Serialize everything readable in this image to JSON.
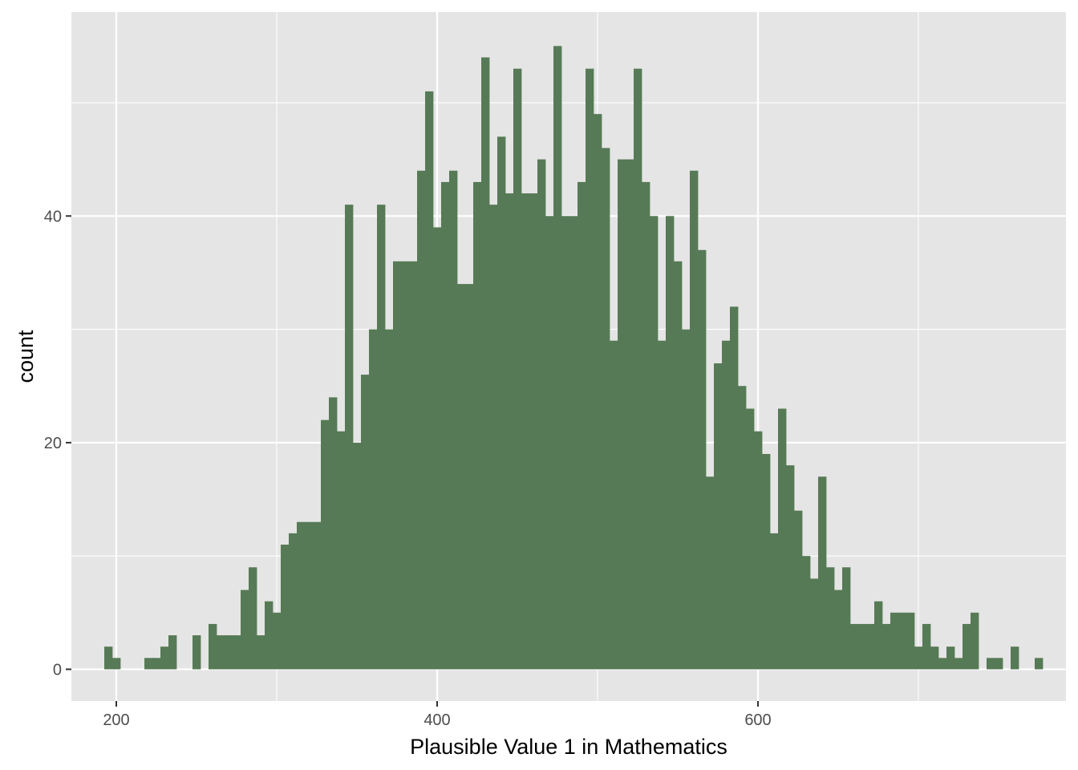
{
  "chart_data": {
    "type": "bar",
    "title": "",
    "xlabel": "Plausible Value 1 in Mathematics",
    "ylabel": "count",
    "bin_width": 5,
    "first_bin_start": 192.5,
    "counts": [
      2,
      1,
      0,
      0,
      0,
      1,
      1,
      2,
      3,
      0,
      0,
      3,
      0,
      4,
      3,
      3,
      3,
      7,
      9,
      3,
      6,
      5,
      11,
      12,
      13,
      13,
      13,
      22,
      24,
      21,
      41,
      20,
      26,
      30,
      41,
      30,
      36,
      36,
      36,
      44,
      51,
      39,
      43,
      44,
      34,
      34,
      43,
      54,
      41,
      47,
      42,
      53,
      42,
      42,
      45,
      40,
      55,
      40,
      40,
      43,
      53,
      49,
      46,
      29,
      45,
      45,
      53,
      43,
      40,
      29,
      40,
      36,
      30,
      44,
      37,
      17,
      27,
      29,
      32,
      25,
      23,
      21,
      19,
      12,
      23,
      18,
      14,
      10,
      8,
      17,
      9,
      7,
      9,
      4,
      4,
      4,
      6,
      4,
      5,
      5,
      5,
      2,
      4,
      2,
      1,
      2,
      1,
      4,
      5,
      0,
      1,
      1,
      0,
      2,
      0,
      0,
      1
    ],
    "x_ticks": [
      200,
      400,
      600
    ],
    "y_ticks": [
      0,
      20,
      40
    ],
    "x_tick_labels": [
      "200",
      "400",
      "600"
    ],
    "y_tick_labels": [
      "0",
      "20",
      "40"
    ],
    "xlim": [
      172,
      792
    ],
    "ylim": [
      -2.8,
      58
    ],
    "grid": true,
    "legend": "none",
    "colors": {
      "bar": "#577a56",
      "panel": "#e5e5e5",
      "grid": "#ffffff",
      "tick": "#333333"
    }
  }
}
